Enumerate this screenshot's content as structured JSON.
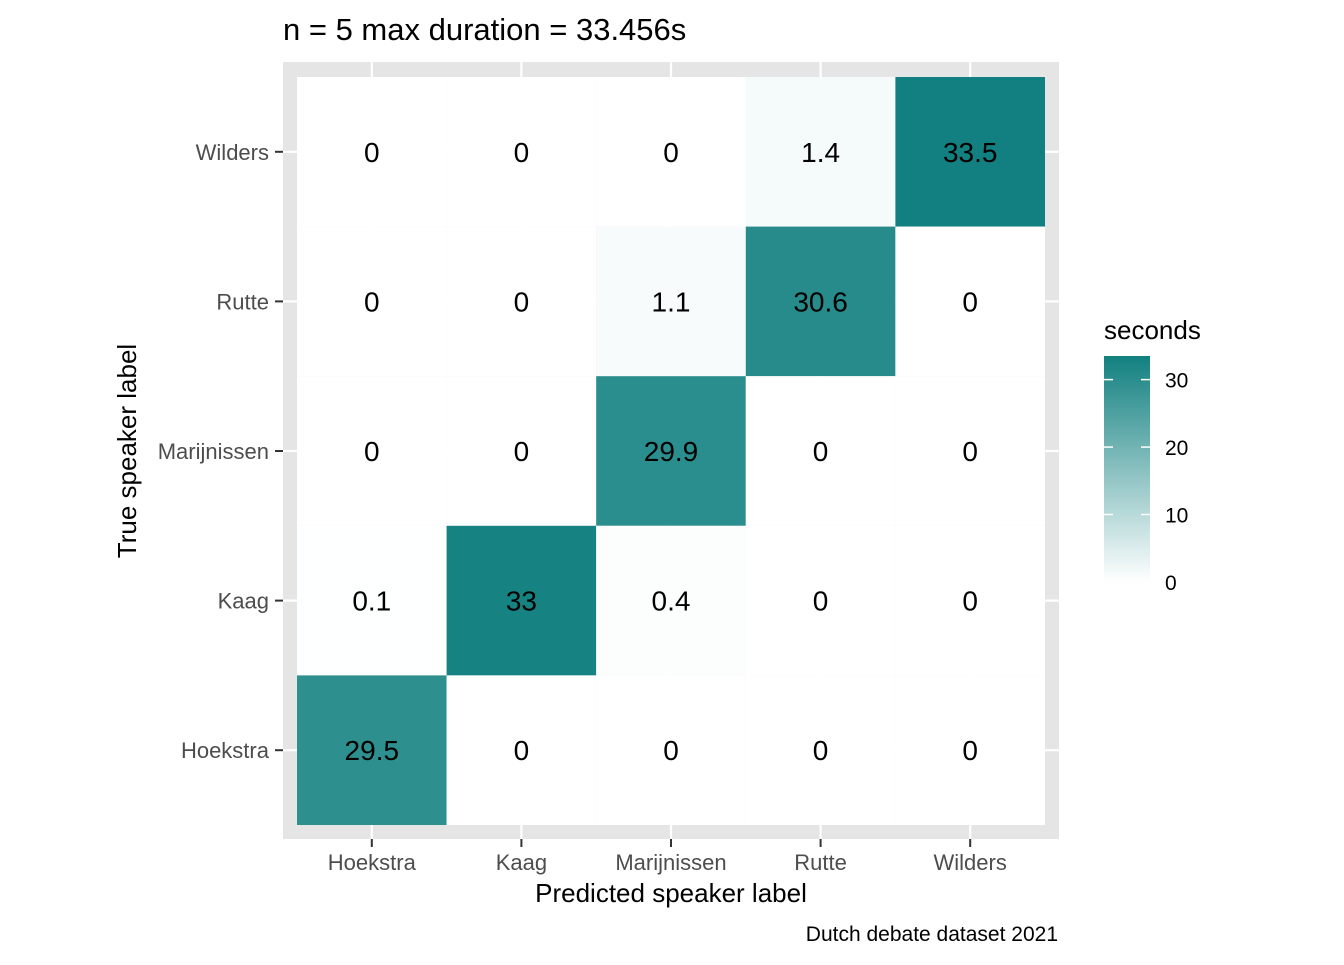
{
  "chart_data": {
    "type": "heatmap",
    "title": "n = 5 max duration = 33.456s",
    "xlabel": "Predicted speaker label",
    "ylabel": "True speaker label",
    "caption": "Dutch debate dataset 2021",
    "x_categories": [
      "Hoekstra",
      "Kaag",
      "Marijnissen",
      "Rutte",
      "Wilders"
    ],
    "y_categories": [
      "Hoekstra",
      "Kaag",
      "Marijnissen",
      "Rutte",
      "Wilders"
    ],
    "rows": [
      {
        "true": "Wilders",
        "values": [
          0,
          0,
          0,
          1.4,
          33.5
        ]
      },
      {
        "true": "Rutte",
        "values": [
          0,
          0,
          1.1,
          30.6,
          0
        ]
      },
      {
        "true": "Marijnissen",
        "values": [
          0,
          0,
          29.9,
          0,
          0
        ]
      },
      {
        "true": "Kaag",
        "values": [
          0.1,
          33,
          0.4,
          0,
          0
        ]
      },
      {
        "true": "Hoekstra",
        "values": [
          29.5,
          0,
          0,
          0,
          0
        ]
      }
    ],
    "legend": {
      "title": "seconds",
      "ticks": [
        0,
        10,
        20,
        30
      ],
      "range": [
        0,
        33.5
      ],
      "low_color": "#ffffff",
      "high_color": "#128080"
    },
    "panel_background": "#e5e5e5",
    "grid": true
  }
}
